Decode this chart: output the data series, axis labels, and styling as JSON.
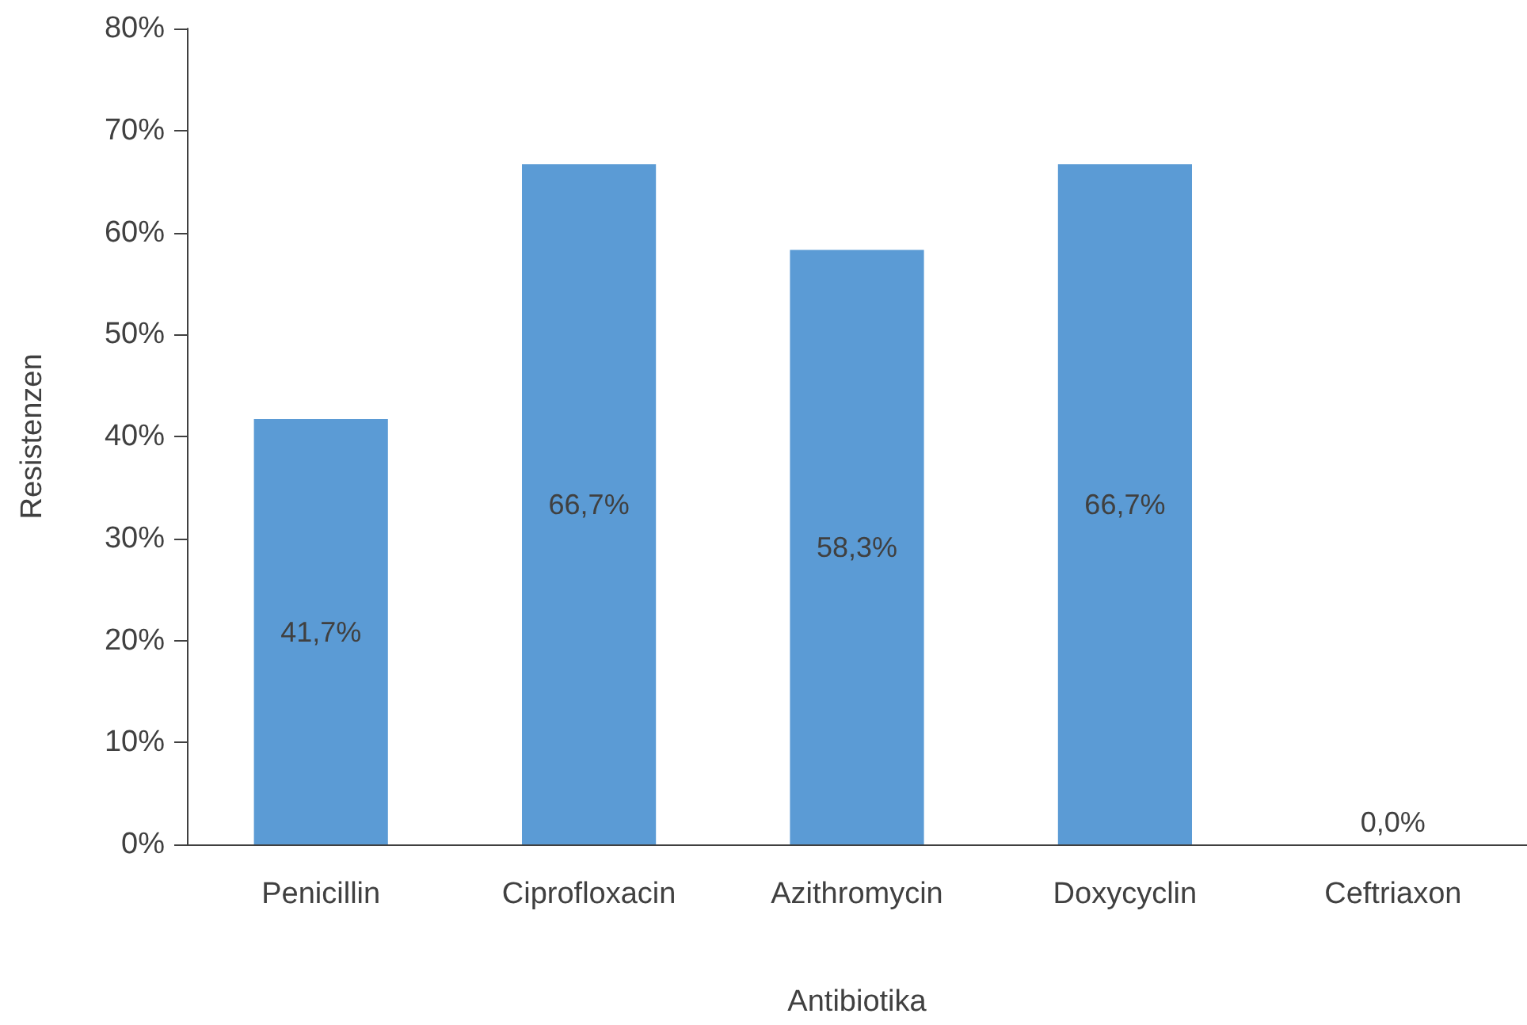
{
  "chart_data": {
    "type": "bar",
    "xlabel": "Antibiotika",
    "ylabel": "Resistenzen",
    "categories": [
      "Penicillin",
      "Ciprofloxacin",
      "Azithromycin",
      "Doxycyclin",
      "Ceftriaxon"
    ],
    "values": [
      41.7,
      66.7,
      58.3,
      66.7,
      0
    ],
    "value_labels": [
      "41,7%",
      "66,7%",
      "58,3%",
      "66,7%",
      "0,0%"
    ],
    "color": "#5b9bd5",
    "ylim": [
      0,
      80
    ],
    "yticks": [
      {
        "value": 0,
        "label": "0%"
      },
      {
        "value": 10,
        "label": "10%"
      },
      {
        "value": 20,
        "label": "20%"
      },
      {
        "value": 30,
        "label": "30%"
      },
      {
        "value": 40,
        "label": "40%"
      },
      {
        "value": 50,
        "label": "50%"
      },
      {
        "value": 60,
        "label": "60%"
      },
      {
        "value": 70,
        "label": "70%"
      },
      {
        "value": 80,
        "label": "80%"
      }
    ],
    "grid": false
  }
}
